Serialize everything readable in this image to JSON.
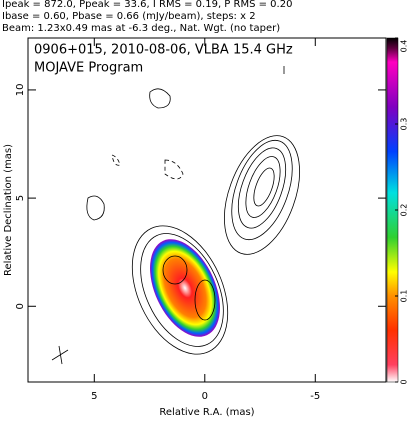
{
  "chart_data": {
    "type": "contour",
    "header": [
      "Ipeak = 872.0, Ppeak = 33.6, I RMS = 0.19, P RMS = 0.20",
      "Ibase = 0.60, Pbase = 0.66 (mJy/beam), steps: x 2",
      "Beam: 1.23x0.49 mas at -6.3 deg., Nat. Wgt. (no taper)"
    ],
    "title": "0906+015, 2010-08-06, VLBA 15.4 GHz",
    "subtitle": "MOJAVE Program",
    "x_label": "Relative R.A. (mas)",
    "y_label": "Relative Declination (mas)",
    "xlim": [
      8,
      -8.2
    ],
    "xticks": [
      5,
      0,
      -5
    ],
    "ylim": [
      -3.5,
      12.4
    ],
    "yticks": [
      0,
      5,
      10
    ],
    "colorbar": {
      "ylim": [
        0,
        0.4
      ],
      "yticks": [
        0,
        0.1,
        0.2,
        0.3,
        0.4
      ]
    }
  }
}
